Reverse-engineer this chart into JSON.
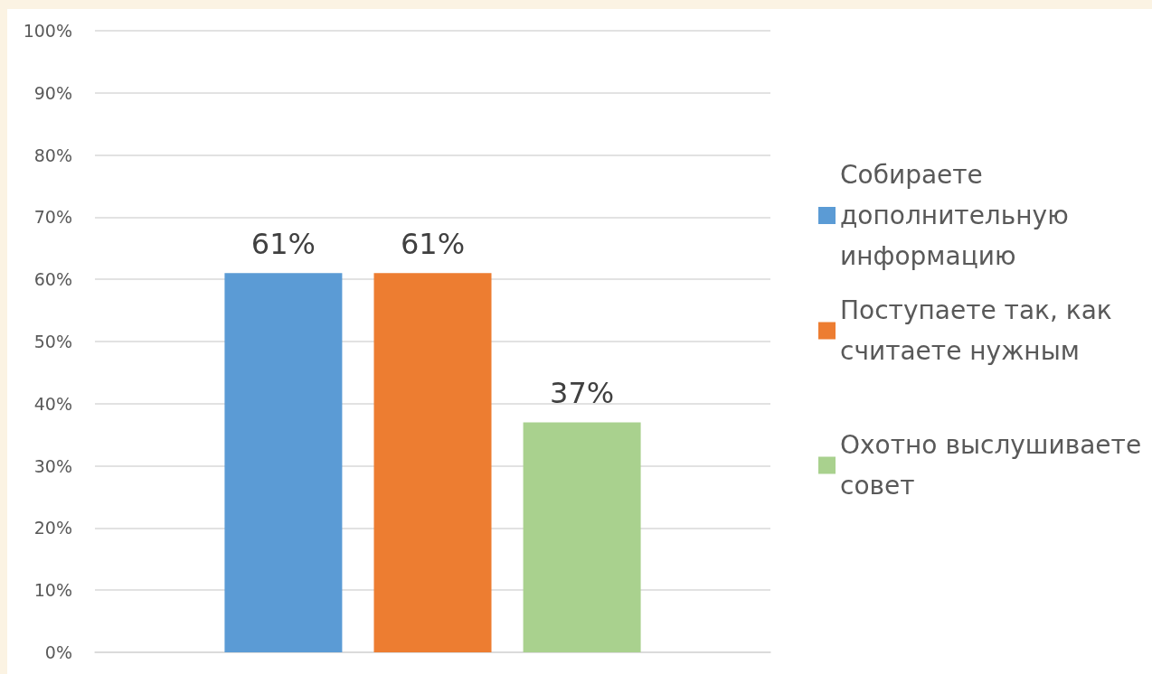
{
  "chart_data": {
    "type": "bar",
    "categories": [
      null
    ],
    "series": [
      {
        "name": "Собираете дополнительную информацию",
        "color": "#5b9bd5",
        "values": [
          61
        ],
        "value_labels": [
          "61%"
        ]
      },
      {
        "name": "Поступаете так, как считаете нужным",
        "color": "#ed7d31",
        "values": [
          61
        ],
        "value_labels": [
          "61%"
        ]
      },
      {
        "name": "Охотно выслушиваете совет",
        "color": "#a9d18e",
        "values": [
          37
        ],
        "value_labels": [
          "37%"
        ]
      }
    ],
    "ylim": [
      0,
      100
    ],
    "yticks": [
      {
        "value": 0,
        "label": "0%"
      },
      {
        "value": 10,
        "label": "10%"
      },
      {
        "value": 20,
        "label": "20%"
      },
      {
        "value": 30,
        "label": "30%"
      },
      {
        "value": 40,
        "label": "40%"
      },
      {
        "value": 50,
        "label": "50%"
      },
      {
        "value": 60,
        "label": "60%"
      },
      {
        "value": 70,
        "label": "70%"
      },
      {
        "value": 80,
        "label": "80%"
      },
      {
        "value": 90,
        "label": "90%"
      },
      {
        "value": 100,
        "label": "100%"
      }
    ],
    "grid": "y",
    "legend": "right"
  }
}
